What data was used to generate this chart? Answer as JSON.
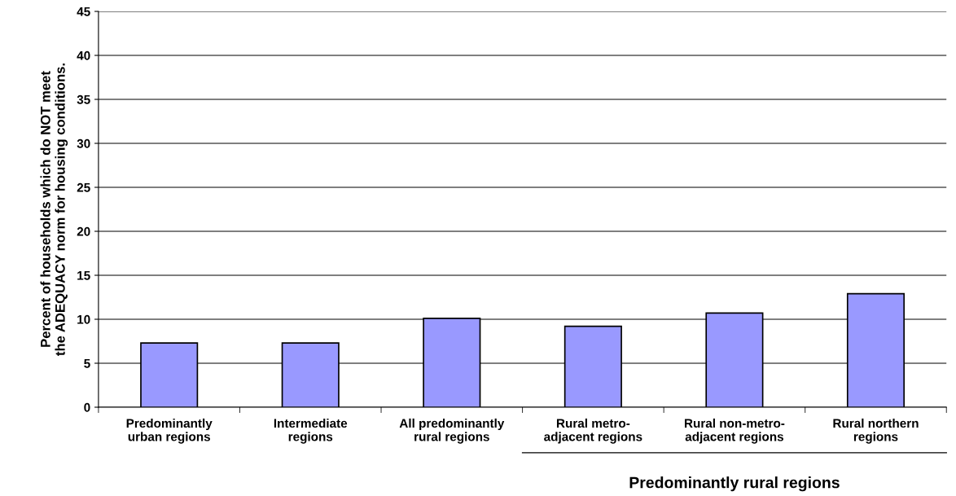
{
  "chart_data": {
    "type": "bar",
    "ylabel": "Percent of households which do NOT meet\nthe ADEQUACY norm for housing conditions.",
    "categories": [
      "Predominantly\nurban regions",
      "Intermediate\nregions",
      "All predominantly\nrural regions",
      "Rural metro-\nadjacent regions",
      "Rural non-metro-\nadjacent regions",
      "Rural northern\nregions"
    ],
    "values": [
      7.3,
      7.3,
      10.1,
      9.2,
      10.7,
      12.9
    ],
    "color": "#9999ff",
    "ylim": [
      0,
      45
    ],
    "yticks": [
      0,
      5,
      10,
      15,
      20,
      25,
      30,
      35,
      40,
      45
    ],
    "grid": "y",
    "annotations": [
      "Predominantly rural regions"
    ]
  }
}
